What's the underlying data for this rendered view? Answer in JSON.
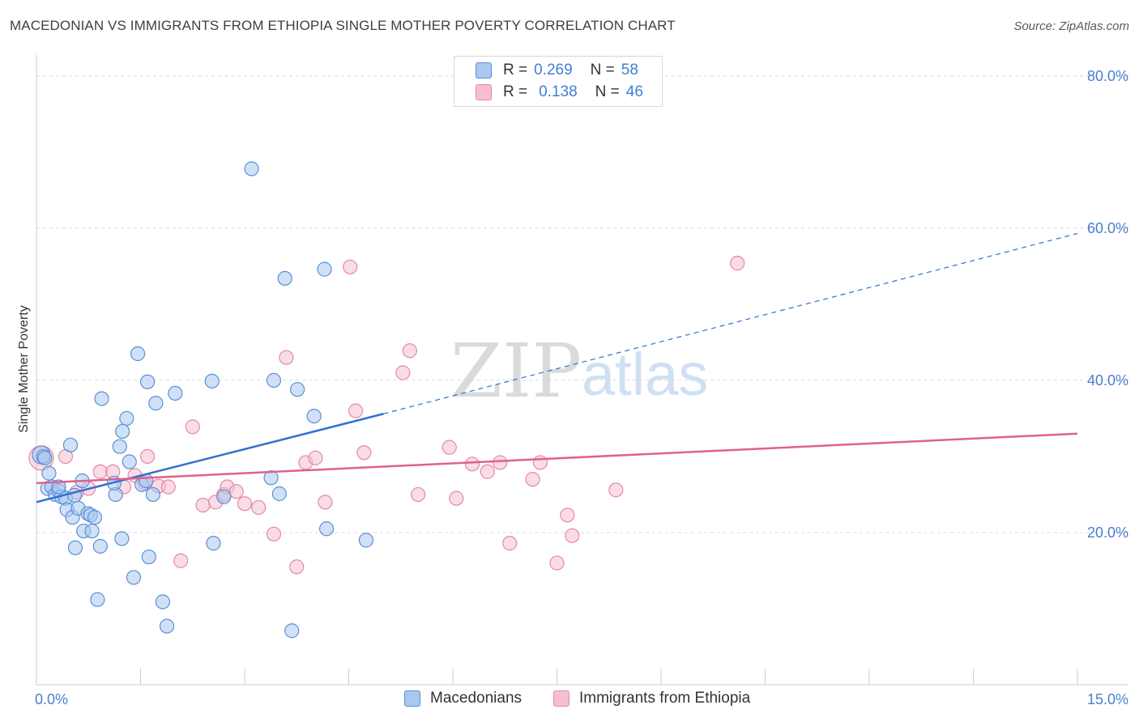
{
  "title": "MACEDONIAN VS IMMIGRANTS FROM ETHIOPIA SINGLE MOTHER POVERTY CORRELATION CHART",
  "source": "Source: ZipAtlas.com",
  "watermark": {
    "zip": "ZIP",
    "atlas": "atlas"
  },
  "legend": {
    "rows": [
      {
        "r_label": "R =",
        "r_value": "0.269",
        "n_label": "N =",
        "n_value": "58"
      },
      {
        "r_label": "R =",
        "r_value": "0.138",
        "n_label": "N =",
        "n_value": "46"
      }
    ]
  },
  "bottom_legend": {
    "series1": "Macedonians",
    "series2": "Immigrants from Ethiopia"
  },
  "colors": {
    "blue_fill": "#a9c8f0",
    "blue_stroke": "#5b8fd6",
    "blue_line": "#2f72d0",
    "pink_fill": "#f6bfd0",
    "pink_stroke": "#e488a8",
    "pink_line": "#e0608e",
    "grid": "#d8dbe0",
    "tick_text": "#4a7fcf"
  },
  "chart_data": {
    "type": "scatter",
    "title": "MACEDONIAN VS IMMIGRANTS FROM ETHIOPIA SINGLE MOTHER POVERTY CORRELATION CHART",
    "xlabel": "",
    "ylabel": "Single Mother Poverty",
    "xlim": [
      0,
      15
    ],
    "ylim": [
      0,
      82
    ],
    "x_tick_labels": [
      "0.0%",
      "15.0%"
    ],
    "y_ticks": [
      20,
      40,
      60,
      80
    ],
    "y_tick_labels": [
      "20.0%",
      "40.0%",
      "60.0%",
      "80.0%"
    ],
    "grid": true,
    "series": [
      {
        "name": "Macedonians",
        "r": 0.269,
        "n": 58,
        "trend": {
          "x0": 0.0,
          "y0": 24.0,
          "x1": 5.0,
          "y1": 35.6,
          "dashed_to_x": 15.0,
          "dashed_to_y": 59.3
        },
        "points": [
          [
            0.07,
            30.2
          ],
          [
            0.1,
            30.0
          ],
          [
            0.12,
            29.8
          ],
          [
            0.18,
            27.8
          ],
          [
            0.16,
            25.8
          ],
          [
            0.22,
            26.0
          ],
          [
            0.27,
            25.0
          ],
          [
            0.32,
            25.5
          ],
          [
            0.36,
            24.7
          ],
          [
            0.42,
            24.5
          ],
          [
            0.44,
            23.0
          ],
          [
            0.49,
            31.5
          ],
          [
            0.52,
            22.0
          ],
          [
            0.56,
            18.0
          ],
          [
            0.6,
            23.2
          ],
          [
            0.66,
            26.8
          ],
          [
            0.68,
            20.2
          ],
          [
            0.74,
            22.5
          ],
          [
            0.78,
            22.3
          ],
          [
            0.8,
            20.2
          ],
          [
            0.84,
            22.0
          ],
          [
            0.88,
            11.2
          ],
          [
            0.92,
            18.2
          ],
          [
            0.94,
            37.6
          ],
          [
            1.14,
            25.0
          ],
          [
            1.12,
            26.5
          ],
          [
            1.2,
            31.3
          ],
          [
            1.24,
            33.3
          ],
          [
            1.23,
            19.2
          ],
          [
            1.3,
            35.0
          ],
          [
            1.34,
            29.3
          ],
          [
            1.4,
            14.1
          ],
          [
            1.46,
            43.5
          ],
          [
            1.52,
            26.3
          ],
          [
            1.58,
            26.8
          ],
          [
            1.6,
            39.8
          ],
          [
            1.62,
            16.8
          ],
          [
            1.68,
            25.0
          ],
          [
            1.72,
            37.0
          ],
          [
            1.82,
            10.9
          ],
          [
            1.88,
            7.7
          ],
          [
            2.0,
            38.3
          ],
          [
            2.53,
            39.9
          ],
          [
            2.55,
            18.6
          ],
          [
            2.7,
            24.7
          ],
          [
            3.1,
            67.8
          ],
          [
            3.38,
            27.2
          ],
          [
            3.42,
            40.0
          ],
          [
            3.5,
            25.1
          ],
          [
            3.58,
            53.4
          ],
          [
            3.68,
            7.1
          ],
          [
            3.76,
            38.8
          ],
          [
            4.0,
            35.3
          ],
          [
            4.15,
            54.6
          ],
          [
            4.18,
            20.5
          ],
          [
            4.75,
            19.0
          ],
          [
            0.32,
            26.0
          ],
          [
            0.55,
            24.9
          ]
        ]
      },
      {
        "name": "Immigrants from Ethiopia",
        "r": 0.138,
        "n": 46,
        "trend": {
          "x0": 0.0,
          "y0": 26.5,
          "x1": 15.0,
          "y1": 33.0
        },
        "points": [
          [
            0.07,
            29.8
          ],
          [
            0.42,
            30.0
          ],
          [
            0.58,
            25.3
          ],
          [
            0.75,
            25.8
          ],
          [
            0.92,
            28.0
          ],
          [
            1.1,
            28.0
          ],
          [
            1.26,
            26.0
          ],
          [
            1.42,
            27.5
          ],
          [
            1.56,
            26.5
          ],
          [
            1.6,
            30.0
          ],
          [
            1.76,
            26.1
          ],
          [
            1.9,
            26.0
          ],
          [
            2.08,
            16.3
          ],
          [
            2.25,
            33.9
          ],
          [
            2.4,
            23.6
          ],
          [
            2.58,
            24.0
          ],
          [
            2.7,
            25.0
          ],
          [
            2.75,
            26.0
          ],
          [
            2.88,
            25.4
          ],
          [
            3.0,
            23.8
          ],
          [
            3.2,
            23.3
          ],
          [
            3.42,
            19.8
          ],
          [
            3.6,
            43.0
          ],
          [
            3.75,
            15.5
          ],
          [
            3.88,
            29.2
          ],
          [
            4.02,
            29.8
          ],
          [
            4.16,
            24.0
          ],
          [
            4.52,
            54.9
          ],
          [
            4.6,
            36.0
          ],
          [
            4.72,
            30.5
          ],
          [
            5.28,
            41.0
          ],
          [
            5.38,
            43.9
          ],
          [
            5.5,
            25.0
          ],
          [
            5.95,
            31.2
          ],
          [
            6.05,
            24.5
          ],
          [
            6.28,
            29.0
          ],
          [
            6.5,
            28.0
          ],
          [
            6.68,
            29.2
          ],
          [
            6.82,
            18.6
          ],
          [
            7.15,
            27.0
          ],
          [
            7.26,
            29.2
          ],
          [
            7.5,
            16.0
          ],
          [
            7.65,
            22.3
          ],
          [
            7.72,
            19.6
          ],
          [
            8.35,
            25.6
          ],
          [
            10.1,
            55.4
          ]
        ]
      }
    ]
  }
}
